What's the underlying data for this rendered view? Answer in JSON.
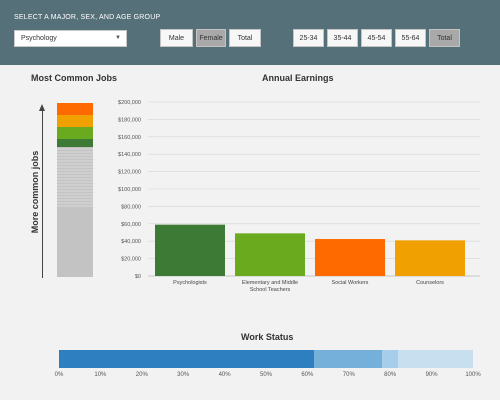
{
  "header": {
    "title": "SELECT A MAJOR, SEX, AND AGE GROUP",
    "major_select": {
      "value": "Psychology"
    },
    "sex_buttons": [
      {
        "label": "Male",
        "selected": false
      },
      {
        "label": "Female",
        "selected": true
      },
      {
        "label": "Total",
        "selected": false
      }
    ],
    "age_buttons": [
      {
        "label": "25-34",
        "selected": false
      },
      {
        "label": "35-44",
        "selected": false
      },
      {
        "label": "45-54",
        "selected": false
      },
      {
        "label": "55-64",
        "selected": false
      },
      {
        "label": "Total",
        "selected": true
      }
    ]
  },
  "colors": {
    "header_bg": "#56707a",
    "psychologists": "#3d7a36",
    "teachers": "#6aaa1e",
    "social_workers": "#ff6a00",
    "counselors": "#f0a000",
    "work_full": "#2e7fbf",
    "work_part": "#75b0db",
    "work_other": "#a6cde9",
    "work_rest": "#c8dff0"
  },
  "most_common_jobs": {
    "title": "Most Common Jobs",
    "axis_label": "More common jobs",
    "segments": [
      {
        "color": "#ff6a00",
        "share": 0.07
      },
      {
        "color": "#f0a000",
        "share": 0.07
      },
      {
        "color": "#6aaa1e",
        "share": 0.065
      },
      {
        "color": "#3d7a36",
        "share": 0.05
      }
    ],
    "other_share": 0.745
  },
  "annual_earnings": {
    "title": "Annual Earnings",
    "chart_data": {
      "type": "bar",
      "categories": [
        "Psychologists",
        "Elementary and Middle School Teachers",
        "Social Workers",
        "Counselors"
      ],
      "values": [
        59000,
        49000,
        42500,
        41000
      ],
      "colors": [
        "#3d7a36",
        "#6aaa1e",
        "#ff6a00",
        "#f0a000"
      ],
      "ylim": [
        0,
        200000
      ],
      "yticks": [
        "$0",
        "$20,000",
        "$40,000",
        "$60,000",
        "$80,000",
        "$100,000",
        "$120,000",
        "$140,000",
        "$160,000",
        "$180,000",
        "$200,000"
      ],
      "grid": true
    }
  },
  "work_status": {
    "title": "Work Status",
    "chart_data": {
      "type": "bar",
      "orientation": "horizontal-stacked",
      "values": [
        61.5,
        16.5,
        4,
        18
      ],
      "colors": [
        "#2e7fbf",
        "#75b0db",
        "#a6cde9",
        "#c8dff0"
      ],
      "xlim": [
        0,
        100
      ],
      "xticks": [
        "0%",
        "10%",
        "20%",
        "30%",
        "40%",
        "50%",
        "60%",
        "70%",
        "80%",
        "90%",
        "100%"
      ]
    }
  }
}
